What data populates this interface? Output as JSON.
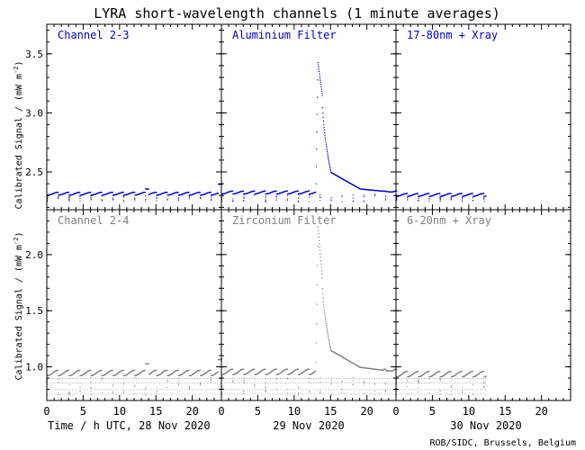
{
  "title": "LYRA short-wavelength channels (1 minute averages)",
  "ylabel_text": "Calibrated Signal / (mW m",
  "ylabel_exp": "-2",
  "ylabel_close": ")",
  "credit": "ROB/SIDC, Brussels, Belgium",
  "colors": {
    "top": "#0000cc",
    "bottom": "#808080",
    "axes": "#000000"
  },
  "chart_data": [
    {
      "type": "scatter",
      "row": "top",
      "ylim": [
        2.18,
        3.75
      ],
      "yticks": [
        2.5,
        3.0,
        3.5
      ],
      "ytick_labels": [
        "2.5",
        "3.0",
        "3.5"
      ],
      "panels": [
        {
          "label": "Channel 2-3",
          "date": "28 Nov 2020",
          "xlim": [
            0,
            24
          ],
          "base": 2.32,
          "low": 2.25,
          "sawtooth": true,
          "end_bump": 2.4,
          "bump_at": 13.7,
          "bump": 2.36,
          "flare": null,
          "coverage": [
            0,
            24
          ]
        },
        {
          "label": "Aluminium Filter",
          "date": "29 Nov 2020",
          "xlim": [
            0,
            24
          ],
          "base": 2.33,
          "low": 2.25,
          "sawtooth": true,
          "flare": {
            "start": 12.9,
            "peak_t": 13.2,
            "peak": 3.43,
            "t2": 13.8,
            "v2": 3.15,
            "t3": 15.0,
            "v3": 2.5,
            "t4": 19.0,
            "v4": 2.36
          },
          "coverage": [
            0,
            24
          ]
        },
        {
          "label": "17-80nm + Xray",
          "date": "30 Nov 2020",
          "xlim": [
            0,
            24
          ],
          "base": 2.31,
          "low": 2.25,
          "sawtooth": true,
          "flare": null,
          "coverage": [
            0,
            12.3
          ]
        }
      ]
    },
    {
      "type": "scatter",
      "row": "bottom",
      "ylim": [
        0.7,
        2.4
      ],
      "yticks": [
        1.0,
        1.5,
        2.0
      ],
      "ytick_labels": [
        "1.0",
        "1.5",
        "2.0"
      ],
      "panels": [
        {
          "label": "Channel 2-4",
          "date": "28 Nov 2020",
          "xlim": [
            0,
            24
          ],
          "base": 0.95,
          "low": 0.75,
          "sawtooth": true,
          "end_bump": 1.07,
          "bump_at": 13.7,
          "bump": 1.03,
          "flare": null,
          "coverage": [
            0,
            24
          ]
        },
        {
          "label": "Zirconium Filter",
          "date": "29 Nov 2020",
          "xlim": [
            0,
            24
          ],
          "base": 0.96,
          "low": 0.75,
          "sawtooth": true,
          "flare": {
            "start": 12.9,
            "peak_t": 13.2,
            "peak": 2.25,
            "t2": 13.8,
            "v2": 1.8,
            "t3": 15.0,
            "v3": 1.15,
            "t4": 19.0,
            "v4": 1.0
          },
          "coverage": [
            0,
            24
          ]
        },
        {
          "label": "6-20nm + Xray",
          "date": "30 Nov 2020",
          "xlim": [
            0,
            24
          ],
          "base": 0.94,
          "low": 0.75,
          "sawtooth": true,
          "flare": null,
          "coverage": [
            0,
            12.3
          ]
        }
      ]
    }
  ],
  "xticks": [
    0,
    5,
    10,
    15,
    20
  ],
  "xtick_labels": [
    "0",
    "5",
    "10",
    "15",
    "20"
  ],
  "xlabels": [
    "Time / h UTC, 28 Nov 2020",
    "29 Nov 2020",
    "30 Nov 2020"
  ]
}
